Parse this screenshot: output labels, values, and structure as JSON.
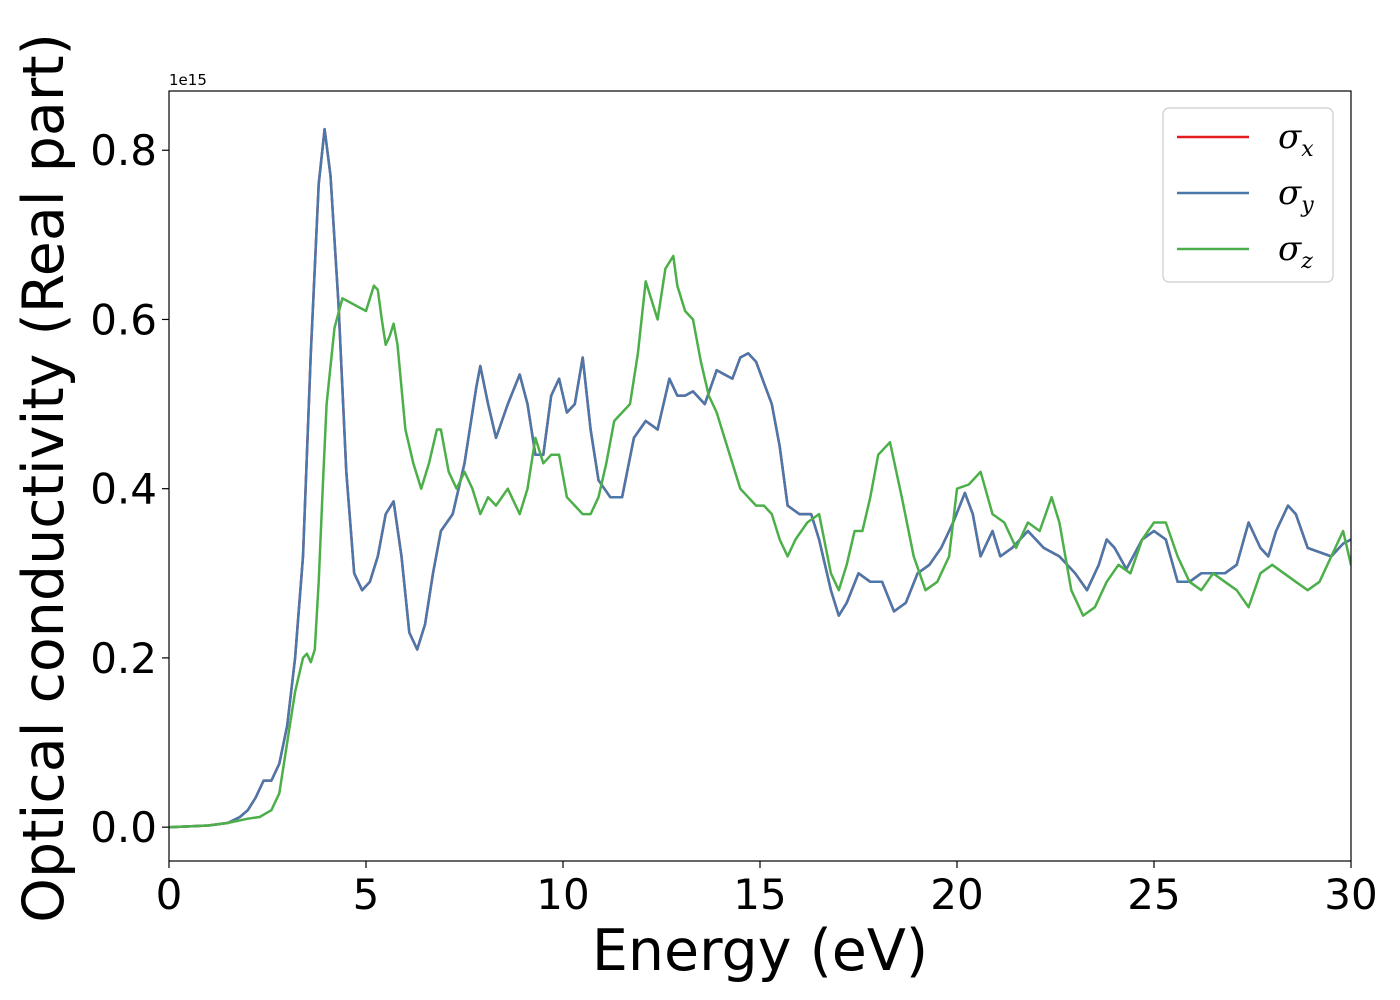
{
  "chart_data": {
    "type": "line",
    "title": "",
    "xlabel": "Energy (eV)",
    "ylabel": "Optical conductivity (Real part)",
    "y_offset_label": "1e15",
    "y_scale_factor": 1000000000000000.0,
    "xlim": [
      0,
      30
    ],
    "ylim": [
      -0.04,
      0.87
    ],
    "xticks": [
      0,
      5,
      10,
      15,
      20,
      25,
      30
    ],
    "xtick_labels": [
      "0",
      "5",
      "10",
      "15",
      "20",
      "25",
      "30"
    ],
    "yticks": [
      0.0,
      0.2,
      0.4,
      0.6,
      0.8
    ],
    "ytick_labels": [
      "0.0",
      "0.2",
      "0.4",
      "0.6",
      "0.8"
    ],
    "grid": false,
    "legend_position": "top-right",
    "series": [
      {
        "name": "σx",
        "name_base": "σ",
        "name_sub": "x",
        "color": "#e41a1c",
        "x": [
          0,
          1,
          1.5,
          1.8,
          2.0,
          2.2,
          2.4,
          2.6,
          2.8,
          3.0,
          3.2,
          3.4,
          3.6,
          3.8,
          3.95,
          4.1,
          4.3,
          4.5,
          4.7,
          4.9,
          5.1,
          5.3,
          5.5,
          5.7,
          5.9,
          6.1,
          6.3,
          6.5,
          6.7,
          6.9,
          7.2,
          7.5,
          7.8,
          7.9,
          8.1,
          8.3,
          8.6,
          8.9,
          9.1,
          9.3,
          9.5,
          9.7,
          9.9,
          10.1,
          10.3,
          10.5,
          10.7,
          10.9,
          11.2,
          11.5,
          11.8,
          12.1,
          12.4,
          12.7,
          12.9,
          13.1,
          13.3,
          13.6,
          13.9,
          14.1,
          14.3,
          14.5,
          14.7,
          14.9,
          15.1,
          15.3,
          15.5,
          15.7,
          16.0,
          16.3,
          16.5,
          16.8,
          17.0,
          17.2,
          17.5,
          17.8,
          18.1,
          18.4,
          18.7,
          19.0,
          19.3,
          19.6,
          19.9,
          20.2,
          20.4,
          20.6,
          20.9,
          21.1,
          21.4,
          21.8,
          22.2,
          22.6,
          23.0,
          23.3,
          23.6,
          23.8,
          24.0,
          24.3,
          24.7,
          25.0,
          25.3,
          25.6,
          25.9,
          26.2,
          26.5,
          26.8,
          27.1,
          27.4,
          27.7,
          27.9,
          28.1,
          28.4,
          28.6,
          28.9,
          29.2,
          29.5,
          29.8,
          30.0
        ],
        "values": [
          0.0,
          0.002,
          0.005,
          0.012,
          0.02,
          0.035,
          0.055,
          0.055,
          0.075,
          0.12,
          0.2,
          0.32,
          0.56,
          0.76,
          0.825,
          0.77,
          0.62,
          0.42,
          0.3,
          0.28,
          0.29,
          0.32,
          0.37,
          0.385,
          0.32,
          0.23,
          0.21,
          0.24,
          0.3,
          0.35,
          0.37,
          0.43,
          0.52,
          0.545,
          0.5,
          0.46,
          0.5,
          0.535,
          0.5,
          0.44,
          0.44,
          0.51,
          0.53,
          0.49,
          0.5,
          0.555,
          0.47,
          0.41,
          0.39,
          0.39,
          0.46,
          0.48,
          0.47,
          0.53,
          0.51,
          0.51,
          0.515,
          0.5,
          0.54,
          0.535,
          0.53,
          0.555,
          0.56,
          0.55,
          0.525,
          0.5,
          0.45,
          0.38,
          0.37,
          0.37,
          0.34,
          0.28,
          0.25,
          0.265,
          0.3,
          0.29,
          0.29,
          0.255,
          0.265,
          0.3,
          0.31,
          0.33,
          0.36,
          0.395,
          0.37,
          0.32,
          0.35,
          0.32,
          0.33,
          0.35,
          0.33,
          0.32,
          0.3,
          0.28,
          0.31,
          0.34,
          0.33,
          0.305,
          0.34,
          0.35,
          0.34,
          0.29,
          0.29,
          0.3,
          0.3,
          0.3,
          0.31,
          0.36,
          0.33,
          0.32,
          0.35,
          0.38,
          0.37,
          0.33,
          0.325,
          0.32,
          0.335,
          0.34
        ]
      },
      {
        "name": "σy",
        "name_base": "σ",
        "name_sub": "y",
        "color": "#4a78ab",
        "x": [
          0,
          1,
          1.5,
          1.8,
          2.0,
          2.2,
          2.4,
          2.6,
          2.8,
          3.0,
          3.2,
          3.4,
          3.6,
          3.8,
          3.95,
          4.1,
          4.3,
          4.5,
          4.7,
          4.9,
          5.1,
          5.3,
          5.5,
          5.7,
          5.9,
          6.1,
          6.3,
          6.5,
          6.7,
          6.9,
          7.2,
          7.5,
          7.8,
          7.9,
          8.1,
          8.3,
          8.6,
          8.9,
          9.1,
          9.3,
          9.5,
          9.7,
          9.9,
          10.1,
          10.3,
          10.5,
          10.7,
          10.9,
          11.2,
          11.5,
          11.8,
          12.1,
          12.4,
          12.7,
          12.9,
          13.1,
          13.3,
          13.6,
          13.9,
          14.1,
          14.3,
          14.5,
          14.7,
          14.9,
          15.1,
          15.3,
          15.5,
          15.7,
          16.0,
          16.3,
          16.5,
          16.8,
          17.0,
          17.2,
          17.5,
          17.8,
          18.1,
          18.4,
          18.7,
          19.0,
          19.3,
          19.6,
          19.9,
          20.2,
          20.4,
          20.6,
          20.9,
          21.1,
          21.4,
          21.8,
          22.2,
          22.6,
          23.0,
          23.3,
          23.6,
          23.8,
          24.0,
          24.3,
          24.7,
          25.0,
          25.3,
          25.6,
          25.9,
          26.2,
          26.5,
          26.8,
          27.1,
          27.4,
          27.7,
          27.9,
          28.1,
          28.4,
          28.6,
          28.9,
          29.2,
          29.5,
          29.8,
          30.0
        ],
        "values": [
          0.0,
          0.002,
          0.005,
          0.012,
          0.02,
          0.035,
          0.055,
          0.055,
          0.075,
          0.12,
          0.2,
          0.32,
          0.56,
          0.76,
          0.825,
          0.77,
          0.62,
          0.42,
          0.3,
          0.28,
          0.29,
          0.32,
          0.37,
          0.385,
          0.32,
          0.23,
          0.21,
          0.24,
          0.3,
          0.35,
          0.37,
          0.43,
          0.52,
          0.545,
          0.5,
          0.46,
          0.5,
          0.535,
          0.5,
          0.44,
          0.44,
          0.51,
          0.53,
          0.49,
          0.5,
          0.555,
          0.47,
          0.41,
          0.39,
          0.39,
          0.46,
          0.48,
          0.47,
          0.53,
          0.51,
          0.51,
          0.515,
          0.5,
          0.54,
          0.535,
          0.53,
          0.555,
          0.56,
          0.55,
          0.525,
          0.5,
          0.45,
          0.38,
          0.37,
          0.37,
          0.34,
          0.28,
          0.25,
          0.265,
          0.3,
          0.29,
          0.29,
          0.255,
          0.265,
          0.3,
          0.31,
          0.33,
          0.36,
          0.395,
          0.37,
          0.32,
          0.35,
          0.32,
          0.33,
          0.35,
          0.33,
          0.32,
          0.3,
          0.28,
          0.31,
          0.34,
          0.33,
          0.305,
          0.34,
          0.35,
          0.34,
          0.29,
          0.29,
          0.3,
          0.3,
          0.3,
          0.31,
          0.36,
          0.33,
          0.32,
          0.35,
          0.38,
          0.37,
          0.33,
          0.325,
          0.32,
          0.335,
          0.34
        ]
      },
      {
        "name": "σz",
        "name_base": "σ",
        "name_sub": "z",
        "color": "#4daf4a",
        "x": [
          0,
          1,
          1.5,
          1.8,
          2.0,
          2.3,
          2.6,
          2.8,
          3.0,
          3.2,
          3.4,
          3.5,
          3.6,
          3.7,
          3.8,
          3.9,
          4.0,
          4.2,
          4.4,
          4.6,
          4.8,
          5.0,
          5.2,
          5.3,
          5.4,
          5.5,
          5.6,
          5.7,
          5.8,
          6.0,
          6.2,
          6.4,
          6.6,
          6.8,
          6.9,
          7.1,
          7.3,
          7.5,
          7.7,
          7.9,
          8.1,
          8.3,
          8.6,
          8.9,
          9.1,
          9.3,
          9.5,
          9.7,
          9.9,
          10.1,
          10.3,
          10.5,
          10.7,
          10.9,
          11.1,
          11.3,
          11.5,
          11.7,
          11.9,
          12.1,
          12.2,
          12.4,
          12.6,
          12.8,
          12.9,
          13.1,
          13.3,
          13.5,
          13.7,
          13.9,
          14.1,
          14.3,
          14.5,
          14.7,
          14.9,
          15.1,
          15.3,
          15.5,
          15.7,
          15.9,
          16.2,
          16.5,
          16.8,
          17.0,
          17.2,
          17.4,
          17.6,
          17.8,
          18.0,
          18.3,
          18.6,
          18.9,
          19.2,
          19.5,
          19.8,
          20.0,
          20.3,
          20.6,
          20.9,
          21.2,
          21.5,
          21.8,
          22.1,
          22.4,
          22.6,
          22.9,
          23.2,
          23.5,
          23.8,
          24.1,
          24.4,
          24.7,
          25.0,
          25.3,
          25.6,
          25.9,
          26.2,
          26.5,
          26.8,
          27.1,
          27.4,
          27.7,
          28.0,
          28.3,
          28.6,
          28.9,
          29.2,
          29.5,
          29.8,
          30.0
        ],
        "values": [
          0.0,
          0.002,
          0.005,
          0.008,
          0.01,
          0.012,
          0.02,
          0.04,
          0.1,
          0.16,
          0.2,
          0.205,
          0.195,
          0.21,
          0.29,
          0.4,
          0.5,
          0.59,
          0.625,
          0.62,
          0.615,
          0.61,
          0.64,
          0.635,
          0.6,
          0.57,
          0.58,
          0.595,
          0.57,
          0.47,
          0.43,
          0.4,
          0.43,
          0.47,
          0.47,
          0.42,
          0.4,
          0.42,
          0.4,
          0.37,
          0.39,
          0.38,
          0.4,
          0.37,
          0.4,
          0.46,
          0.43,
          0.44,
          0.44,
          0.39,
          0.38,
          0.37,
          0.37,
          0.39,
          0.43,
          0.48,
          0.49,
          0.5,
          0.56,
          0.645,
          0.63,
          0.6,
          0.66,
          0.675,
          0.64,
          0.61,
          0.6,
          0.55,
          0.51,
          0.49,
          0.46,
          0.43,
          0.4,
          0.39,
          0.38,
          0.38,
          0.37,
          0.34,
          0.32,
          0.34,
          0.36,
          0.37,
          0.3,
          0.28,
          0.31,
          0.35,
          0.35,
          0.39,
          0.44,
          0.455,
          0.39,
          0.32,
          0.28,
          0.29,
          0.32,
          0.4,
          0.405,
          0.42,
          0.37,
          0.36,
          0.33,
          0.36,
          0.35,
          0.39,
          0.36,
          0.28,
          0.25,
          0.26,
          0.29,
          0.31,
          0.3,
          0.34,
          0.36,
          0.36,
          0.32,
          0.29,
          0.28,
          0.3,
          0.29,
          0.28,
          0.26,
          0.3,
          0.31,
          0.3,
          0.29,
          0.28,
          0.29,
          0.32,
          0.35,
          0.31
        ]
      }
    ]
  }
}
